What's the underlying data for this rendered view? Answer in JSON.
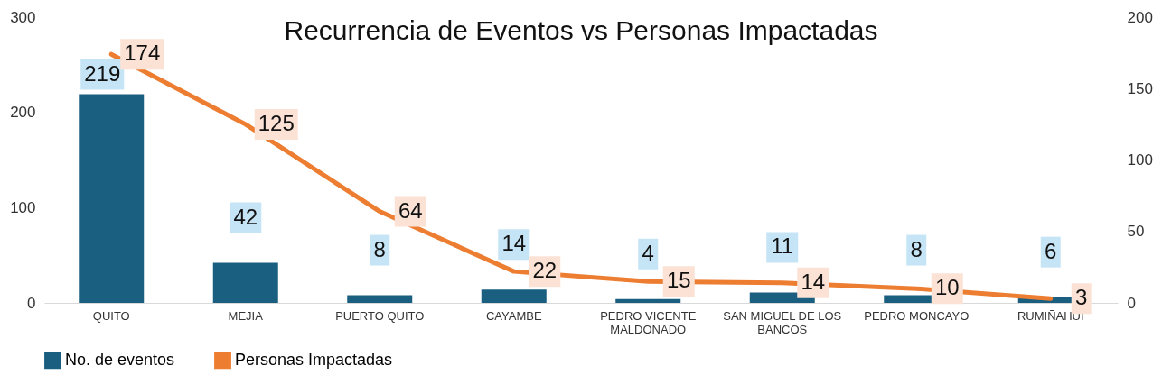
{
  "chart_data": {
    "type": "bar",
    "title": "Recurrencia de Eventos vs Personas Impactadas",
    "categories": [
      "QUITO",
      "MEJIA",
      "PUERTO QUITO",
      "CAYAMBE",
      "PEDRO VICENTE MALDONADO",
      "SAN MIGUEL DE LOS BANCOS",
      "PEDRO MONCAYO",
      "RUMIÑAHUI"
    ],
    "series": [
      {
        "name": "No. de eventos",
        "color": "#1a5f80",
        "values": [
          219,
          42,
          8,
          14,
          4,
          11,
          8,
          6
        ]
      },
      {
        "name": "Personas Impactadas",
        "type": "line",
        "axis": "y2",
        "color": "#ed7d31",
        "values": [
          174,
          125,
          64,
          22,
          15,
          14,
          10,
          3
        ]
      }
    ],
    "ylim": [
      0,
      300
    ],
    "yticks": [
      0,
      100,
      200,
      300
    ],
    "y2lim": [
      0,
      200
    ],
    "y2ticks": [
      0,
      50,
      100,
      150,
      200
    ],
    "data_labels": true,
    "grid": false,
    "legend": "bottom",
    "marker": "none"
  }
}
